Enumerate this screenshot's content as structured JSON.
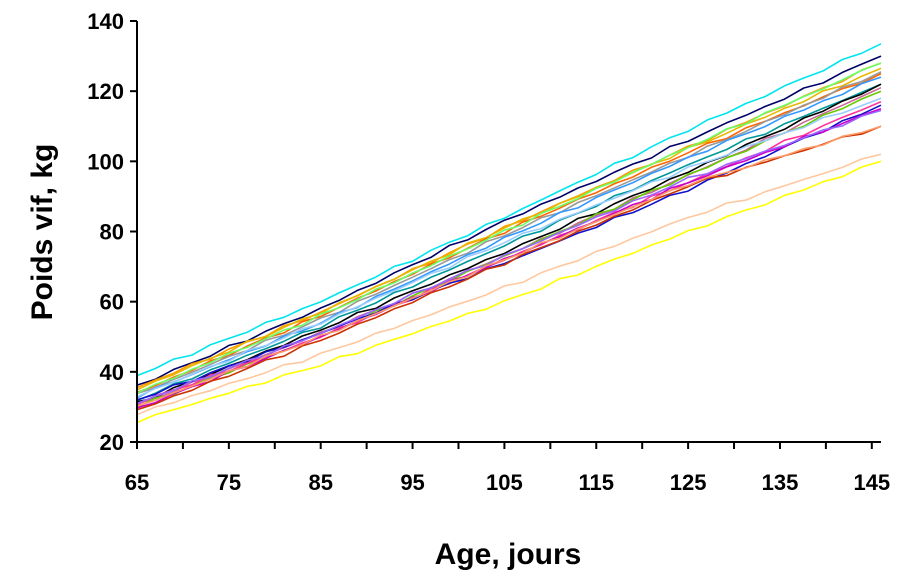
{
  "chart_data": {
    "type": "line",
    "title": "",
    "xlabel": "Age, jours",
    "ylabel": "Poids vif, kg",
    "xlim": [
      65,
      146
    ],
    "ylim": [
      20,
      140
    ],
    "x_ticks": [
      65,
      75,
      85,
      95,
      105,
      115,
      125,
      135,
      145
    ],
    "y_ticks": [
      20,
      40,
      60,
      80,
      100,
      120,
      140
    ],
    "grid": false,
    "legend": "none",
    "series": [
      {
        "color": "#00e5ee",
        "x": [
          65,
          85,
          105,
          125,
          146
        ],
        "values": [
          39,
          60,
          84,
          109,
          133.5
        ]
      },
      {
        "color": "#000066",
        "x": [
          65,
          85,
          105,
          125,
          146
        ],
        "values": [
          36,
          58,
          83,
          106,
          130
        ]
      },
      {
        "color": "#ff9900",
        "x": [
          65,
          85,
          105,
          125,
          146
        ],
        "values": [
          35.5,
          57,
          81,
          104,
          128
        ]
      },
      {
        "color": "#e6b800",
        "x": [
          65,
          85,
          105,
          125,
          146
        ],
        "values": [
          35,
          57,
          81,
          103.5,
          126.5
        ]
      },
      {
        "color": "#ff6600",
        "x": [
          65,
          85,
          105,
          125,
          146
        ],
        "values": [
          34,
          56,
          80,
          102.5,
          125
        ]
      },
      {
        "color": "#999999",
        "x": [
          65,
          85,
          105,
          125,
          146
        ],
        "values": [
          33.5,
          55,
          79,
          101.5,
          125.5
        ]
      },
      {
        "color": "#66ff66",
        "x": [
          65,
          85,
          105,
          125,
          146
        ],
        "values": [
          34,
          56,
          80,
          104,
          128
        ]
      },
      {
        "color": "#3399ff",
        "x": [
          65,
          85,
          105,
          125,
          146
        ],
        "values": [
          33,
          54,
          78,
          101,
          124
        ]
      },
      {
        "color": "#009999",
        "x": [
          65,
          85,
          105,
          125,
          146
        ],
        "values": [
          32,
          53,
          76,
          99,
          122
        ]
      },
      {
        "color": "#000000",
        "x": [
          65,
          85,
          105,
          125,
          146
        ],
        "values": [
          31,
          52,
          74,
          97,
          122
        ]
      },
      {
        "color": "#cc6699",
        "x": [
          65,
          85,
          105,
          125,
          146
        ],
        "values": [
          30.5,
          51,
          73,
          96,
          121
        ]
      },
      {
        "color": "#66cc00",
        "x": [
          65,
          85,
          105,
          125,
          146
        ],
        "values": [
          30,
          50,
          73,
          96,
          120
        ]
      },
      {
        "color": "#ff3399",
        "x": [
          65,
          85,
          105,
          125,
          146
        ],
        "values": [
          31,
          50,
          72,
          94,
          117
        ]
      },
      {
        "color": "#1111cc",
        "x": [
          65,
          85,
          105,
          125,
          146
        ],
        "values": [
          32,
          51,
          71,
          92,
          116
        ]
      },
      {
        "color": "#cc00cc",
        "x": [
          65,
          85,
          105,
          125,
          146
        ],
        "values": [
          29.5,
          50,
          72,
          94,
          115
        ]
      },
      {
        "color": "#9966ff",
        "x": [
          65,
          85,
          105,
          125,
          146
        ],
        "values": [
          31,
          51,
          73,
          95,
          114.5
        ]
      },
      {
        "color": "#99ccff",
        "x": [
          65,
          85,
          105,
          125,
          146
        ],
        "values": [
          33,
          54,
          77,
          98,
          118
        ]
      },
      {
        "color": "#cc3300",
        "x": [
          65,
          85,
          105,
          125,
          146
        ],
        "values": [
          29,
          49,
          71,
          93,
          110
        ]
      },
      {
        "color": "#ff9966",
        "x": [
          65,
          85,
          105,
          125,
          146
        ],
        "values": [
          30,
          50,
          72,
          93.5,
          110
        ]
      },
      {
        "color": "#ffc8a0",
        "x": [
          65,
          85,
          105,
          125,
          146
        ],
        "values": [
          28,
          45,
          64,
          84,
          102
        ]
      },
      {
        "color": "#ffff00",
        "x": [
          65,
          85,
          105,
          125,
          146
        ],
        "values": [
          26,
          42,
          60,
          80,
          100
        ]
      }
    ]
  }
}
